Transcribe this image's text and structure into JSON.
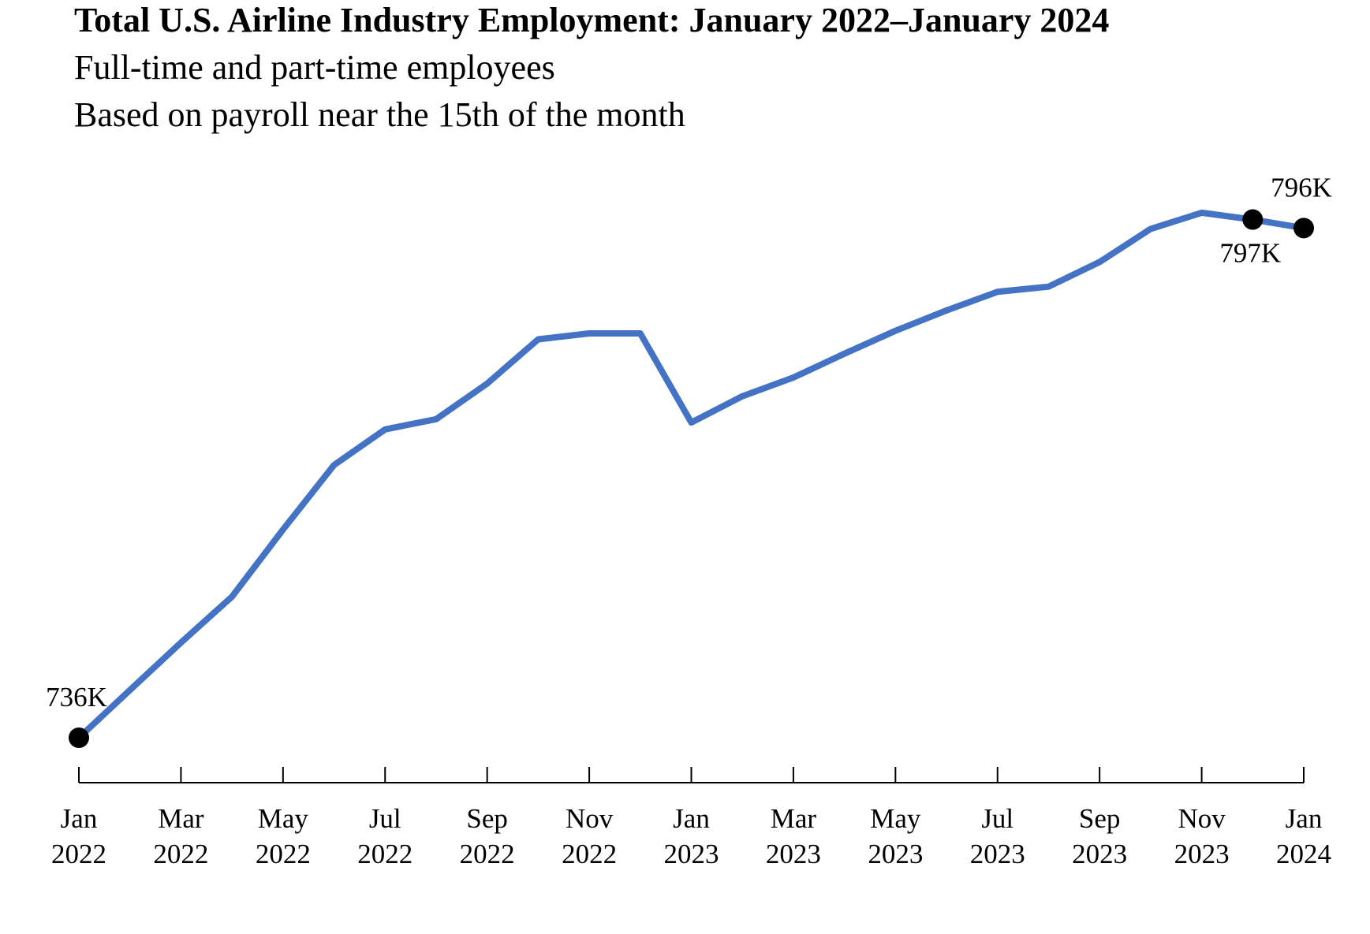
{
  "header": {
    "title": "Total U.S. Airline Industry Employment: January 2022–January 2024",
    "subtitle_lines": [
      "Full-time and part-time employees",
      "Based on payroll near the 15th of the month"
    ]
  },
  "chart_data": {
    "type": "line",
    "title": "Total U.S. Airline Industry Employment: January 2022–January 2024",
    "subtitle": [
      "Full-time and part-time employees",
      "Based on payroll near the 15th of the month"
    ],
    "xlabel": "",
    "ylabel": "",
    "y_axis_visible": false,
    "grid": false,
    "legend": "none",
    "line_color": "#4472C4",
    "marker_color": "#000000",
    "x": [
      "2022-01",
      "2022-02",
      "2022-03",
      "2022-04",
      "2022-05",
      "2022-06",
      "2022-07",
      "2022-08",
      "2022-09",
      "2022-10",
      "2022-11",
      "2022-12",
      "2023-01",
      "2023-02",
      "2023-03",
      "2023-04",
      "2023-05",
      "2023-06",
      "2023-07",
      "2023-08",
      "2023-09",
      "2023-10",
      "2023-11",
      "2023-12",
      "2024-01"
    ],
    "values": [
      736,
      741.6,
      747.2,
      752.6,
      760.5,
      768.1,
      772.3,
      773.5,
      777.7,
      782.9,
      783.6,
      783.6,
      773.1,
      776.2,
      778.4,
      781.2,
      783.9,
      786.3,
      788.5,
      789.1,
      792.0,
      795.9,
      797.8,
      797,
      796
    ],
    "ylim": [
      718,
      808
    ],
    "x_ticks": [
      {
        "x": "2022-01",
        "month": "Jan",
        "year": "2022"
      },
      {
        "x": "2022-03",
        "month": "Mar",
        "year": "2022"
      },
      {
        "x": "2022-05",
        "month": "May",
        "year": "2022"
      },
      {
        "x": "2022-07",
        "month": "Jul",
        "year": "2022"
      },
      {
        "x": "2022-09",
        "month": "Sep",
        "year": "2022"
      },
      {
        "x": "2022-11",
        "month": "Nov",
        "year": "2022"
      },
      {
        "x": "2023-01",
        "month": "Jan",
        "year": "2023"
      },
      {
        "x": "2023-03",
        "month": "Mar",
        "year": "2023"
      },
      {
        "x": "2023-05",
        "month": "May",
        "year": "2023"
      },
      {
        "x": "2023-07",
        "month": "Jul",
        "year": "2023"
      },
      {
        "x": "2023-09",
        "month": "Sep",
        "year": "2023"
      },
      {
        "x": "2023-11",
        "month": "Nov",
        "year": "2023"
      },
      {
        "x": "2024-01",
        "month": "Jan",
        "year": "2024"
      }
    ],
    "annotations": [
      {
        "x": "2022-01",
        "text": "736K",
        "position": "above"
      },
      {
        "x": "2023-12",
        "text": "797K",
        "position": "below"
      },
      {
        "x": "2024-01",
        "text": "796K",
        "position": "above"
      }
    ]
  }
}
